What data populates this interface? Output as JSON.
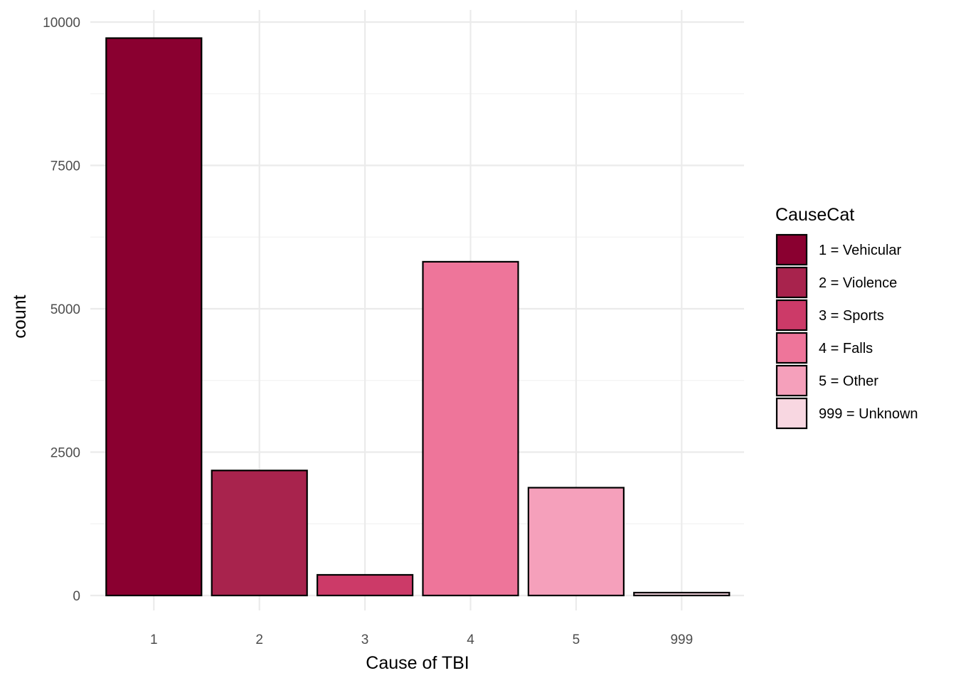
{
  "chart_data": {
    "type": "bar",
    "categories": [
      "1",
      "2",
      "3",
      "4",
      "5",
      "999"
    ],
    "values": [
      9720,
      2180,
      360,
      5820,
      1880,
      50
    ],
    "colors": [
      "#8A0030",
      "#A8234D",
      "#CC3A68",
      "#EE759A",
      "#F5A0BB",
      "#F8D7E1"
    ],
    "xlabel": "Cause of TBI",
    "ylabel": "count",
    "ylim": [
      0,
      10000
    ],
    "yticks": [
      0,
      2500,
      5000,
      7500,
      10000
    ],
    "grid": true,
    "legend": {
      "title": "CauseCat",
      "position": "right",
      "entries": [
        "1 = Vehicular",
        "2 = Violence",
        "3 = Sports",
        "4 = Falls",
        "5 = Other",
        "999 = Unknown"
      ]
    }
  }
}
